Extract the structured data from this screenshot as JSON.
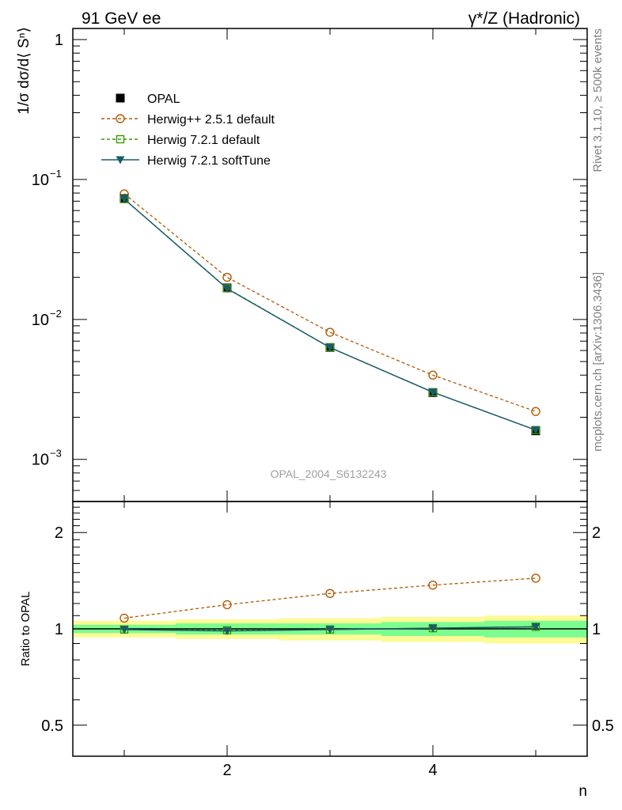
{
  "header": {
    "left_title": "91 GeV ee",
    "right_title": "γ*/Z (Hadronic)",
    "side_label_top": "Rivet 3.1.10, ≥ 500k events",
    "side_label_bottom": "mcplots.cern.ch [arXiv:1306.3436]",
    "watermark": "OPAL_2004_S6132243"
  },
  "colors": {
    "herwig_pp": "#b35900",
    "herwig_721": "#3a9a00",
    "herwig_soft": "#1b5c6b",
    "band_inner": "#7dfc8f",
    "band_outer": "#fcfc96"
  },
  "chart_data": [
    {
      "type": "line",
      "ylabel": "1/σ dσ/d⟨ Sⁿ⟩",
      "yscale": "log",
      "ylim": [
        0.0005,
        1.2
      ],
      "xlim": [
        0.5,
        5.5
      ],
      "x": [
        1,
        2,
        3,
        4,
        5
      ],
      "yticks_major": [
        {
          "value": 1,
          "label": "1"
        },
        {
          "value": 0.1,
          "label": "10",
          "exp": "−1"
        },
        {
          "value": 0.01,
          "label": "10",
          "exp": "−2"
        },
        {
          "value": 0.001,
          "label": "10",
          "exp": "−3"
        }
      ],
      "legend_position": "top-left",
      "series": [
        {
          "name": "OPAL",
          "marker": "filled-square",
          "values": [
            0.073,
            0.0168,
            0.0063,
            0.003,
            0.0016
          ]
        },
        {
          "name": "Herwig++ 2.5.1 default",
          "marker": "open-circle",
          "linestyle": "dashed",
          "values": [
            0.079,
            0.02,
            0.0081,
            0.004,
            0.0022
          ]
        },
        {
          "name": "Herwig 7.2.1 default",
          "marker": "open-square",
          "linestyle": "dashed",
          "values": [
            0.0725,
            0.0167,
            0.0063,
            0.00302,
            0.00162
          ]
        },
        {
          "name": "Herwig 7.2.1 softTune",
          "marker": "filled-triangle-down",
          "linestyle": "solid",
          "values": [
            0.0725,
            0.0166,
            0.0063,
            0.00302,
            0.00162
          ]
        }
      ]
    },
    {
      "type": "line",
      "ylabel": "Ratio to OPAL",
      "xlabel": "n",
      "yscale": "log",
      "ylim": [
        0.4,
        2.5
      ],
      "xlim": [
        0.5,
        5.5
      ],
      "x": [
        1,
        2,
        3,
        4,
        5
      ],
      "xticks": [
        {
          "value": 2,
          "label": "2"
        },
        {
          "value": 4,
          "label": "4"
        }
      ],
      "yticks_major": [
        {
          "value": 2,
          "label": "2"
        },
        {
          "value": 1,
          "label": "1"
        },
        {
          "value": 0.5,
          "label": "0.5"
        }
      ],
      "reference_line": 1,
      "bands": {
        "inner_halfwidth": [
          0.03,
          0.04,
          0.04,
          0.05,
          0.06
        ],
        "outer_halfwidth": [
          0.06,
          0.07,
          0.08,
          0.09,
          0.1
        ]
      },
      "series": [
        {
          "name": "Herwig++ 2.5.1 default",
          "marker": "open-circle",
          "linestyle": "dashed",
          "values": [
            1.08,
            1.19,
            1.29,
            1.37,
            1.44
          ]
        },
        {
          "name": "Herwig 7.2.1 default",
          "marker": "open-square",
          "linestyle": "dashed",
          "values": [
            0.995,
            0.99,
            0.995,
            1.005,
            1.015
          ]
        },
        {
          "name": "Herwig 7.2.1 softTune",
          "marker": "filled-triangle-down",
          "linestyle": "solid",
          "values": [
            0.995,
            0.985,
            0.995,
            1.005,
            1.015
          ]
        }
      ]
    }
  ]
}
